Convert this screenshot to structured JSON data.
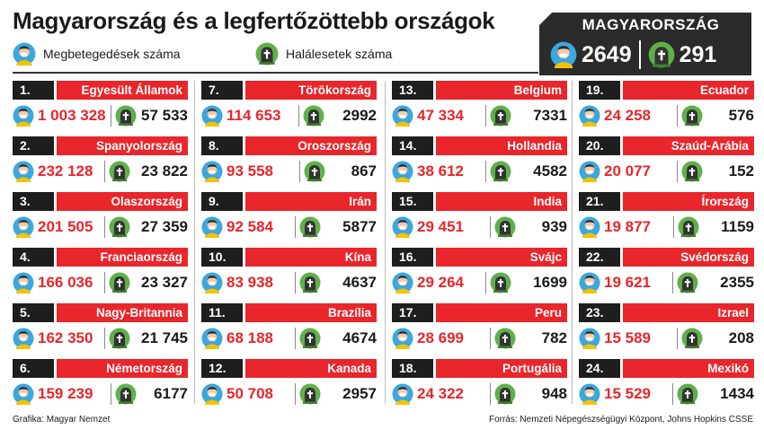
{
  "title": "Magyarország és a legfertőzöttebb országok",
  "legend": {
    "cases_label": "Megbetegedések száma",
    "deaths_label": "Halálesetek száma"
  },
  "hungary": {
    "label": "MAGYARORSZÁG",
    "cases": "2649",
    "deaths": "291"
  },
  "colors": {
    "accent": "#e8262b",
    "dark": "#1e1e1e"
  },
  "icons": {
    "cases": "person-mask-icon",
    "deaths": "grave-icon"
  },
  "countries": [
    {
      "rank": "1.",
      "name": "Egyesült Államok",
      "cases": "1 003 328",
      "deaths": "57 533"
    },
    {
      "rank": "2.",
      "name": "Spanyolország",
      "cases": "232 128",
      "deaths": "23 822"
    },
    {
      "rank": "3.",
      "name": "Olaszország",
      "cases": "201 505",
      "deaths": "27 359"
    },
    {
      "rank": "4.",
      "name": "Franciaország",
      "cases": "166 036",
      "deaths": "23 327"
    },
    {
      "rank": "5.",
      "name": "Nagy-Britannia",
      "cases": "162 350",
      "deaths": "21 745"
    },
    {
      "rank": "6.",
      "name": "Németország",
      "cases": "159 239",
      "deaths": "6177"
    },
    {
      "rank": "7.",
      "name": "Törökország",
      "cases": "114 653",
      "deaths": "2992"
    },
    {
      "rank": "8.",
      "name": "Oroszország",
      "cases": "93 558",
      "deaths": "867"
    },
    {
      "rank": "9.",
      "name": "Irán",
      "cases": "92 584",
      "deaths": "5877"
    },
    {
      "rank": "10.",
      "name": "Kína",
      "cases": "83 938",
      "deaths": "4637"
    },
    {
      "rank": "11.",
      "name": "Brazília",
      "cases": "68 188",
      "deaths": "4674"
    },
    {
      "rank": "12.",
      "name": "Kanada",
      "cases": "50 708",
      "deaths": "2957"
    },
    {
      "rank": "13.",
      "name": "Belgium",
      "cases": "47 334",
      "deaths": "7331"
    },
    {
      "rank": "14.",
      "name": "Hollandia",
      "cases": "38 612",
      "deaths": "4582"
    },
    {
      "rank": "15.",
      "name": "India",
      "cases": "29 451",
      "deaths": "939"
    },
    {
      "rank": "16.",
      "name": "Svájc",
      "cases": "29 264",
      "deaths": "1699"
    },
    {
      "rank": "17.",
      "name": "Peru",
      "cases": "28 699",
      "deaths": "782"
    },
    {
      "rank": "18.",
      "name": "Portugália",
      "cases": "24 322",
      "deaths": "948"
    },
    {
      "rank": "19.",
      "name": "Ecuador",
      "cases": "24 258",
      "deaths": "576"
    },
    {
      "rank": "20.",
      "name": "Szaúd-Arábia",
      "cases": "20 077",
      "deaths": "152"
    },
    {
      "rank": "21.",
      "name": "Írország",
      "cases": "19 877",
      "deaths": "1159"
    },
    {
      "rank": "22.",
      "name": "Svédország",
      "cases": "19 621",
      "deaths": "2355"
    },
    {
      "rank": "23.",
      "name": "Izrael",
      "cases": "15 589",
      "deaths": "208"
    },
    {
      "rank": "24.",
      "name": "Mexikó",
      "cases": "15 529",
      "deaths": "1434"
    }
  ],
  "footer": {
    "credit": "Grafika: Magyar Nemzet",
    "source": "Forrás: Nemzeti Népegészségügyi Központ, Johns Hopkins CSSE"
  }
}
